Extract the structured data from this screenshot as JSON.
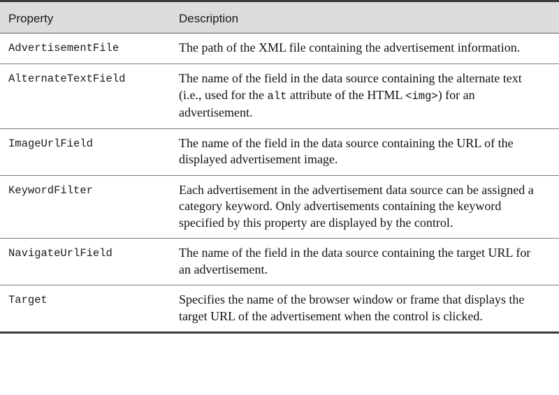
{
  "table": {
    "headers": {
      "property": "Property",
      "description": "Description"
    },
    "rows": [
      {
        "property": "AdvertisementFile",
        "description": "The path of the XML file containing the advertisement information."
      },
      {
        "property": "AlternateTextField",
        "description_pre": "The name of the field in the data source containing the alternate text (i.e., used for the ",
        "description_code1": "alt",
        "description_mid": " attribute of the HTML ",
        "description_code2": "<img>",
        "description_post": ") for an advertisement."
      },
      {
        "property": "ImageUrlField",
        "description": "The name of the field in the data source containing the URL of the displayed advertisement image."
      },
      {
        "property": "KeywordFilter",
        "description": "Each advertisement in the advertisement data source can be assigned a category keyword. Only advertisements containing the keyword specified by this property are displayed by the control."
      },
      {
        "property": "NavigateUrlField",
        "description": "The name of the field in the data source containing the target URL for an advertisement."
      },
      {
        "property": "Target",
        "description": "Specifies the name of the browser window or frame that displays the target URL of the advertisement when the control is clicked."
      }
    ]
  }
}
